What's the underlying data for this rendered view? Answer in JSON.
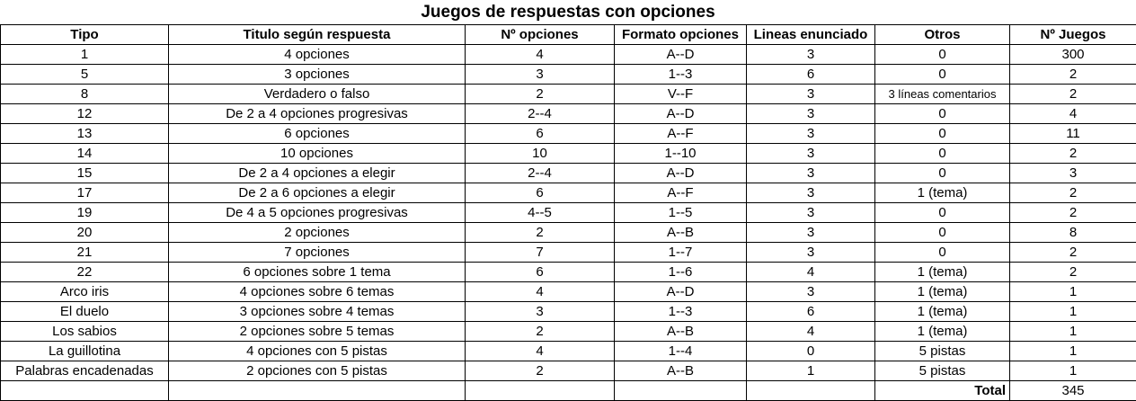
{
  "title": "Juegos de respuestas con opciones",
  "headers": [
    "Tipo",
    "Titulo según respuesta",
    "Nº opciones",
    "Formato opciones",
    "Lineas enunciado",
    "Otros",
    "Nº Juegos"
  ],
  "rows": [
    [
      "1",
      "4 opciones",
      "4",
      "A--D",
      "3",
      "0",
      "300"
    ],
    [
      "5",
      "3 opciones",
      "3",
      "1--3",
      "6",
      "0",
      "2"
    ],
    [
      "8",
      "Verdadero o falso",
      "2",
      "V--F",
      "3",
      "3 líneas comentarios",
      "2"
    ],
    [
      "12",
      "De 2 a 4 opciones progresivas",
      "2--4",
      "A--D",
      "3",
      "0",
      "4"
    ],
    [
      "13",
      "6 opciones",
      "6",
      "A--F",
      "3",
      "0",
      "11"
    ],
    [
      "14",
      "10 opciones",
      "10",
      "1--10",
      "3",
      "0",
      "2"
    ],
    [
      "15",
      "De 2 a 4 opciones a elegir",
      "2--4",
      "A--D",
      "3",
      "0",
      "3"
    ],
    [
      "17",
      "De 2 a 6 opciones a elegir",
      "6",
      "A--F",
      "3",
      "1 (tema)",
      "2"
    ],
    [
      "19",
      "De 4 a 5 opciones progresivas",
      "4--5",
      "1--5",
      "3",
      "0",
      "2"
    ],
    [
      "20",
      "2 opciones",
      "2",
      "A--B",
      "3",
      "0",
      "8"
    ],
    [
      "21",
      "7 opciones",
      "7",
      "1--7",
      "3",
      "0",
      "2"
    ],
    [
      "22",
      "6 opciones sobre 1 tema",
      "6",
      "1--6",
      "4",
      "1 (tema)",
      "2"
    ],
    [
      "Arco iris",
      "4 opciones sobre 6 temas",
      "4",
      "A--D",
      "3",
      "1 (tema)",
      "1"
    ],
    [
      "El duelo",
      "3 opciones sobre 4 temas",
      "3",
      "1--3",
      "6",
      "1 (tema)",
      "1"
    ],
    [
      "Los sabios",
      "2 opciones sobre 5 temas",
      "2",
      "A--B",
      "4",
      "1 (tema)",
      "1"
    ],
    [
      "La guillotina",
      "4 opciones con 5 pistas",
      "4",
      "1--4",
      "0",
      "5 pistas",
      "1"
    ],
    [
      "Palabras encadenadas",
      "2 opciones con 5 pistas",
      "2",
      "A--B",
      "1",
      "5 pistas",
      "1"
    ]
  ],
  "footer": {
    "label": "Total",
    "value": "345"
  }
}
